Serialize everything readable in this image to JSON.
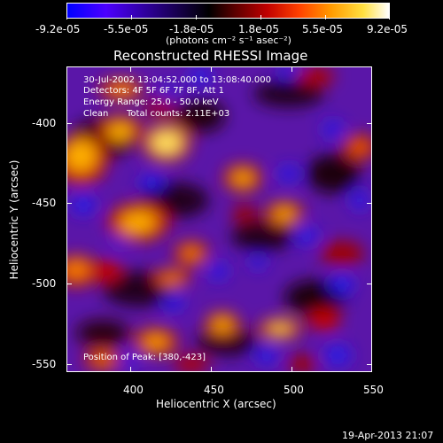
{
  "colorbar": {
    "tick_labels": [
      "-9.2e-05",
      "-5.5e-05",
      "-1.8e-05",
      "1.8e-05",
      "5.5e-05",
      "9.2e-05"
    ],
    "units": "(photons cm⁻² s⁻¹ asec⁻²)"
  },
  "title": "Reconstructed RHESSI Image",
  "info": {
    "time_range": "30-Jul-2002 13:04:52.000 to 13:08:40.000",
    "detectors": "Detectors: 4F 5F 6F 7F 8F, Att 1",
    "energy_range": "Energy Range: 25.0 - 50.0 keV",
    "clean": "Clean",
    "total_counts": "Total counts: 2.11E+03",
    "position_of_peak": "Position of Peak: [380,-423]"
  },
  "axes": {
    "xlabel": "Heliocentric X (arcsec)",
    "ylabel": "Heliocentric Y (arcsec)",
    "x_ticks": [
      "400",
      "450",
      "500",
      "550"
    ],
    "y_ticks": [
      "-400",
      "-450",
      "-500",
      "-550"
    ]
  },
  "timestamp": "19-Apr-2013 21:07"
}
